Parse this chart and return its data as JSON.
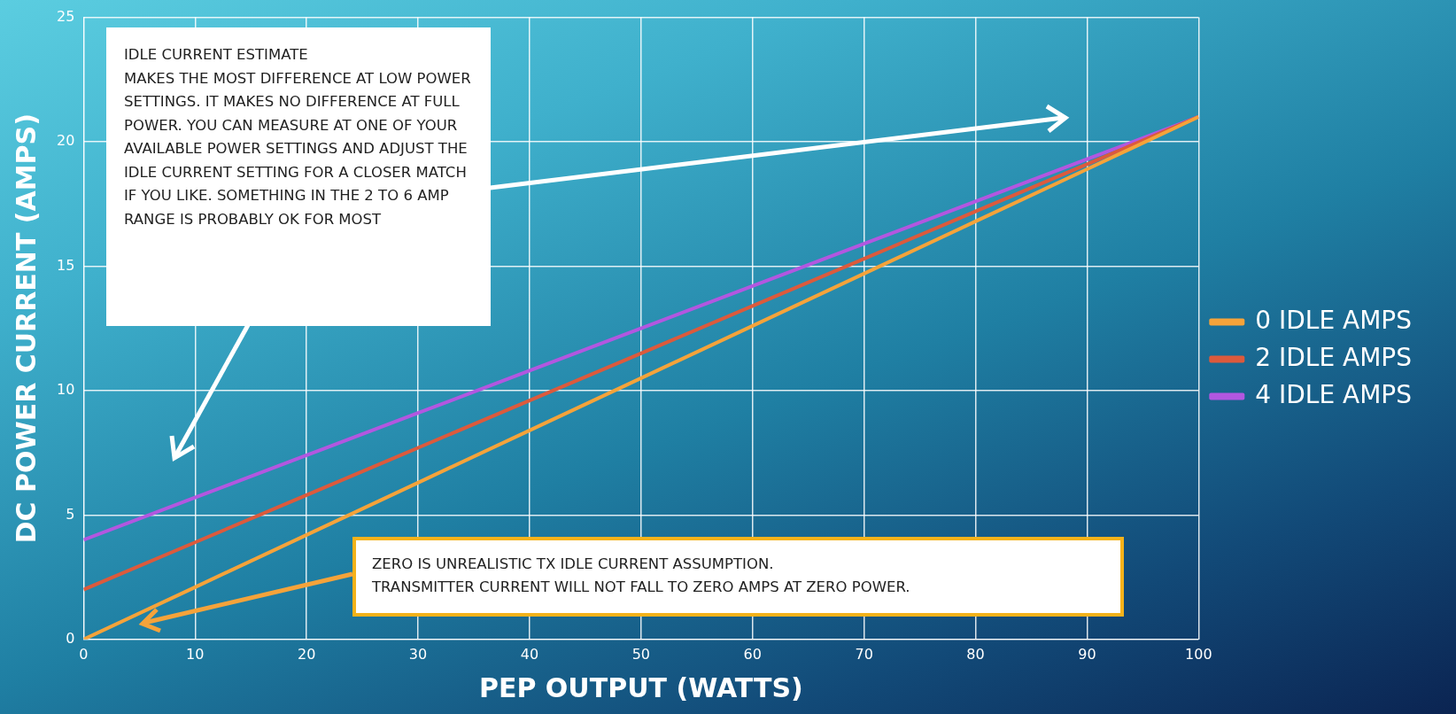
{
  "chart_data": {
    "type": "line",
    "xlabel": "PEP OUTPUT (WATTS)",
    "ylabel": "DC POWER CURRENT (AMPS)",
    "xlim": [
      0,
      100
    ],
    "xticks": [
      0,
      10,
      20,
      30,
      40,
      50,
      60,
      70,
      80,
      90,
      100
    ],
    "ylim": [
      0,
      25
    ],
    "yticks": [
      0,
      5,
      10,
      15,
      20,
      25
    ],
    "grid": true,
    "legend": "right",
    "marker": "none",
    "line_style": "solid",
    "x": [
      0,
      10,
      20,
      30,
      40,
      50,
      60,
      70,
      80,
      90,
      100
    ],
    "series": [
      {
        "name": "0 IDLE AMPS",
        "color": "#f5a33a",
        "values": [
          0,
          2.1,
          4.2,
          6.3,
          8.4,
          10.5,
          12.6,
          14.7,
          16.8,
          18.9,
          21
        ]
      },
      {
        "name": "2 IDLE AMPS",
        "color": "#dc5a3c",
        "values": [
          2,
          3.9,
          5.8,
          7.7,
          9.6,
          11.5,
          13.4,
          15.3,
          17.2,
          19.1,
          21
        ]
      },
      {
        "name": "4 IDLE AMPS",
        "color": "#b257e0",
        "values": [
          4,
          5.7,
          7.4,
          9.1,
          10.8,
          12.5,
          14.2,
          15.9,
          17.6,
          19.3,
          21
        ]
      }
    ],
    "annotations": [
      {
        "text": "IDLE CURRENT ESTIMATE\nMAKES THE MOST DIFFERENCE AT LOW POWER SETTINGS. IT MAKES NO DIFFERENCE AT FULL POWER.  YOU CAN MEASURE AT ONE OF YOUR AVAILABLE POWER SETTINGS AND ADJUST THE IDLE CURRENT SETTING FOR A CLOSER MATCH IF YOU LIKE. SOMETHING IN THE 2 TO 6 AMP RANGE IS PROBABLY OK FOR MOST"
      },
      {
        "text": "ZERO IS UNREALISTIC  TX IDLE CURRENT ASSUMPTION.\nTRANSMITTER CURRENT WILL NOT FALL TO ZERO AMPS AT ZERO POWER."
      }
    ]
  }
}
